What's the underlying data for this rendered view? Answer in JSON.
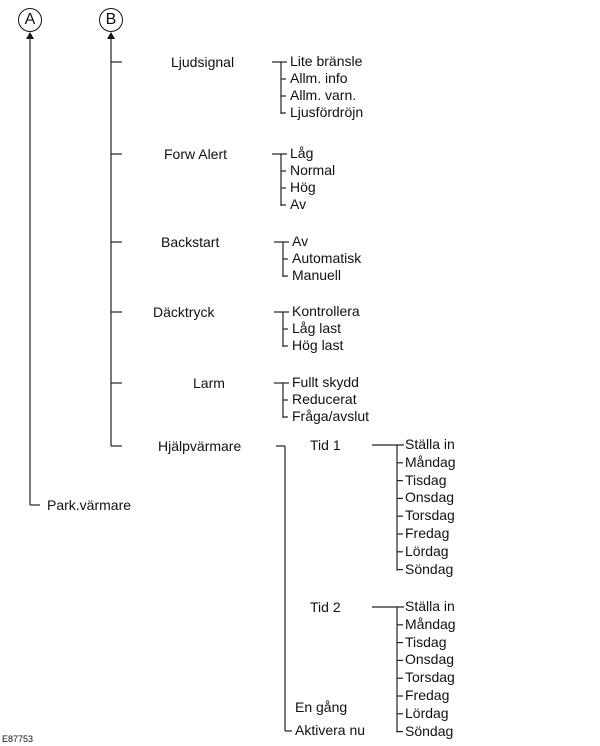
{
  "markers": {
    "a": "A",
    "b": "B"
  },
  "park_heater": "Park.värmare",
  "figure_code": "E87753",
  "menu": [
    {
      "label": "Ljudsignal",
      "items": [
        "Lite bränsle",
        "Allm. info",
        "Allm. varn.",
        "Ljusfördröjn"
      ]
    },
    {
      "label": "Forw Alert",
      "items": [
        "Låg",
        "Normal",
        "Hög",
        "Av"
      ]
    },
    {
      "label": "Backstart",
      "items": [
        "Av",
        "Automatisk",
        "Manuell"
      ]
    },
    {
      "label": "Däcktryck",
      "items": [
        "Kontrollera",
        "Låg last",
        "Hög last"
      ]
    },
    {
      "label": "Larm",
      "items": [
        "Fullt skydd",
        "Reducerat",
        "Fråga/avslut"
      ]
    }
  ],
  "heater": {
    "label": "Hjälpvärmare",
    "timers": [
      {
        "label": "Tid 1",
        "items": [
          "Ställa in",
          "Måndag",
          "Tisdag",
          "Onsdag",
          "Torsdag",
          "Fredag",
          "Lördag",
          "Söndag"
        ]
      },
      {
        "label": "Tid 2",
        "items": [
          "Ställa in",
          "Måndag",
          "Tisdag",
          "Onsdag",
          "Torsdag",
          "Fredag",
          "Lördag",
          "Söndag"
        ]
      }
    ],
    "once": "En gång",
    "activate_now": "Aktivera nu"
  }
}
